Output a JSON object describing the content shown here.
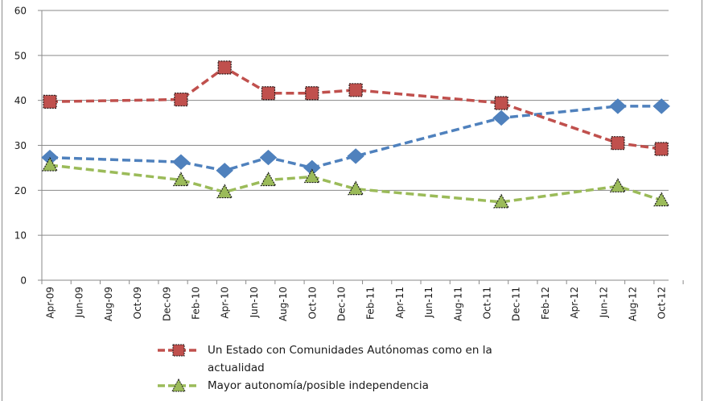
{
  "chart_data": {
    "type": "line",
    "title": "",
    "xlabel": "",
    "ylabel": "",
    "ylim": [
      0,
      60
    ],
    "yticks": [
      "0",
      "10",
      "20",
      "30",
      "40",
      "50",
      "60"
    ],
    "yticks_values": [
      0,
      10,
      20,
      30,
      40,
      50,
      60
    ],
    "grid": true,
    "x_axis": {
      "type": "date",
      "tick_labels": [
        "Apr-09",
        "Jun-09",
        "Aug-09",
        "Oct-09",
        "Dec-09",
        "Feb-10",
        "Apr-10",
        "Jun-10",
        "Aug-10",
        "Oct-10",
        "Dec-10",
        "Feb-11",
        "Apr-11",
        "Jun-11",
        "Aug-11",
        "Oct-11",
        "Dec-11",
        "Feb-12",
        "Apr-12",
        "Jun-12",
        "Aug-12",
        "Oct-12"
      ],
      "tick_months_since_start": [
        0,
        2,
        4,
        6,
        8,
        10,
        12,
        14,
        16,
        18,
        20,
        22,
        24,
        26,
        28,
        30,
        32,
        34,
        36,
        38,
        40,
        42
      ],
      "range_months": [
        0,
        43
      ]
    },
    "x": [
      "Apr-09",
      "Jan-10",
      "Apr-10",
      "Jul-10",
      "Oct-10",
      "Jan-11",
      "Nov-11",
      "Jul-12",
      "Oct-12"
    ],
    "x_months_since_start": [
      0,
      9,
      12,
      15,
      18,
      21,
      31,
      39,
      42
    ],
    "series": [
      {
        "name": "Un Estado con Comunidades Autónomas como en la actualidad",
        "legend_lines": [
          "Un Estado con Comunidades Autónomas como en la",
          "actualidad"
        ],
        "color": "#C0504D",
        "marker": "square",
        "in_legend": true,
        "values": [
          39.7,
          40.2,
          47.3,
          41.6,
          41.6,
          42.3,
          39.4,
          30.5,
          29.2
        ]
      },
      {
        "name": "",
        "color": "#4F81BD",
        "marker": "diamond",
        "in_legend": false,
        "values": [
          27.3,
          26.3,
          24.4,
          27.3,
          25.0,
          27.6,
          36.1,
          38.7,
          38.7
        ]
      },
      {
        "name": "Mayor autonomía/posible  independencia",
        "legend_lines": [
          "Mayor autonomía/posible  independencia"
        ],
        "color": "#9BBB59",
        "marker": "triangle",
        "in_legend": true,
        "values": [
          25.6,
          22.3,
          19.6,
          22.3,
          23.0,
          20.3,
          17.4,
          20.9,
          17.8
        ]
      }
    ],
    "legend_position": "bottom"
  }
}
